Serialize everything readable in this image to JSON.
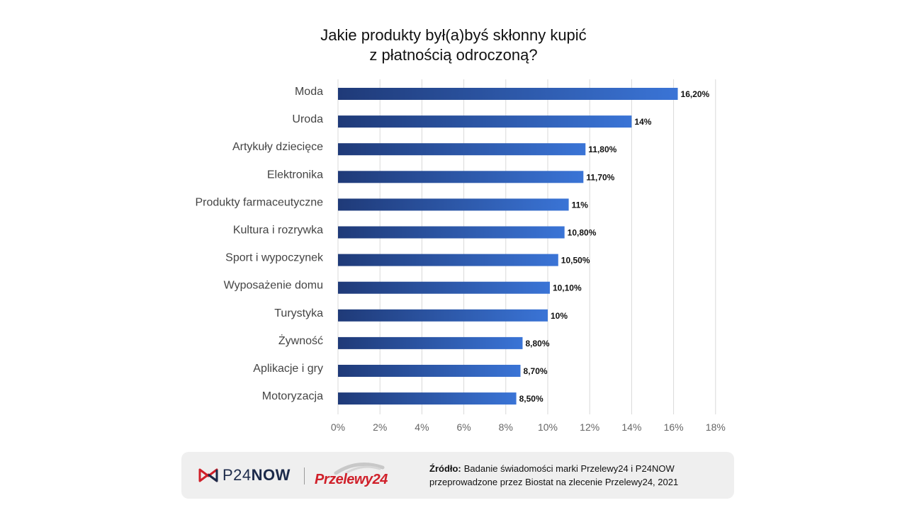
{
  "title": {
    "line1": "Jakie produkty był(a)byś skłonny kupić",
    "line2": "z płatnością odroczoną?"
  },
  "chart_data": {
    "type": "bar",
    "orientation": "horizontal",
    "categories": [
      "Moda",
      "Uroda",
      "Artykuły dziecięce",
      "Elektronika",
      "Produkty farmaceutyczne",
      "Kultura i rozrywka",
      "Sport i wypoczynek",
      "Wyposażenie domu",
      "Turystyka",
      "Żywność",
      "Aplikacje i gry",
      "Motoryzacja"
    ],
    "values": [
      16.2,
      14,
      11.8,
      11.7,
      11,
      10.8,
      10.5,
      10.1,
      10,
      8.8,
      8.7,
      8.5
    ],
    "value_labels": [
      "16,20%",
      "14%",
      "11,80%",
      "11,70%",
      "11%",
      "10,80%",
      "10,50%",
      "10,10%",
      "10%",
      "8,80%",
      "8,70%",
      "8,50%"
    ],
    "x_ticks": [
      "0%",
      "2%",
      "4%",
      "6%",
      "8%",
      "10%",
      "12%",
      "14%",
      "16%",
      "18%"
    ],
    "xlim": [
      0,
      18
    ],
    "grid": true,
    "bar_gradient": [
      "#1f3a78",
      "#3a74d6"
    ],
    "grid_color": "#d9d9d9"
  },
  "footer": {
    "brand1_prefix": "P24",
    "brand1_suffix": "NOW",
    "brand2": "Przelewy24",
    "source_label": "Źródło:",
    "source_text": "Badanie świadomości marki Przelewy24 i P24NOW przeprowadzone przez Biostat na zlecenie Przelewy24, 2021"
  }
}
